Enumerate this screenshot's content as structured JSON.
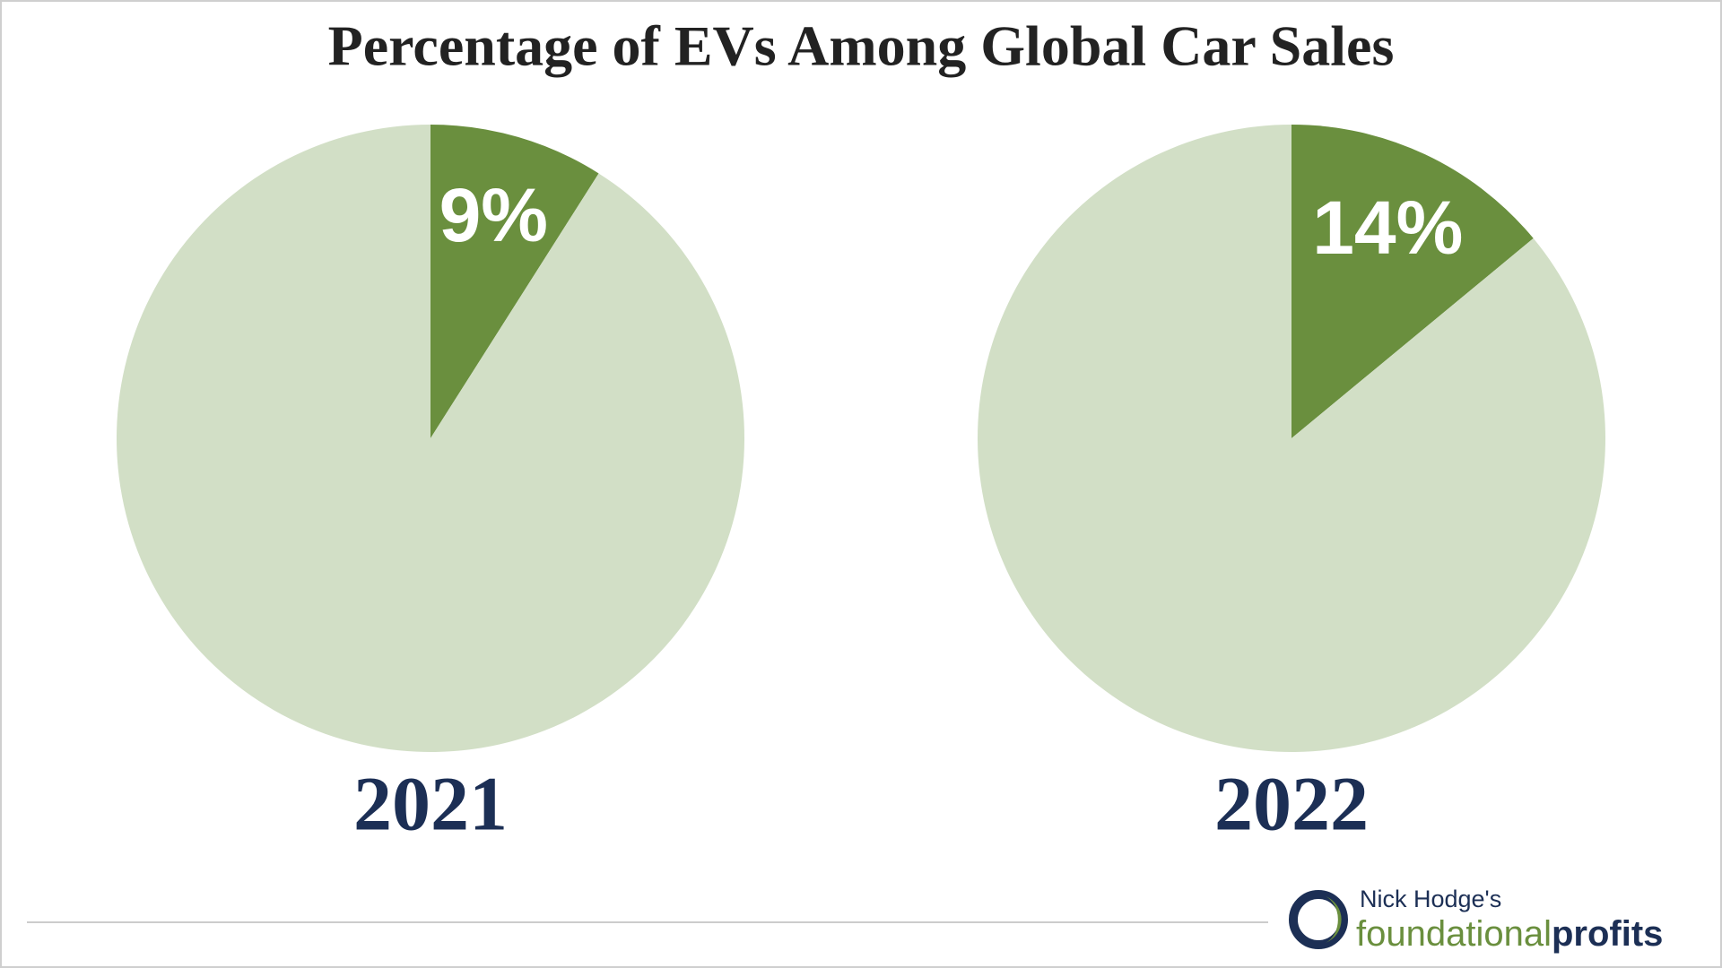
{
  "title": "Percentage of EVs Among Global Car Sales",
  "chart_data": [
    {
      "type": "pie",
      "title": "2021",
      "values": [
        9,
        91
      ],
      "value_labels": [
        "9%",
        null
      ],
      "colors": [
        "#6a8f3e",
        "#d2dfc6"
      ]
    },
    {
      "type": "pie",
      "title": "2022",
      "values": [
        14,
        86
      ],
      "value_labels": [
        "14%",
        null
      ],
      "colors": [
        "#6a8f3e",
        "#d2dfc6"
      ]
    }
  ],
  "branding": {
    "tagline": "Nick Hodge's",
    "name_start": "foundational",
    "name_end": "profits"
  }
}
